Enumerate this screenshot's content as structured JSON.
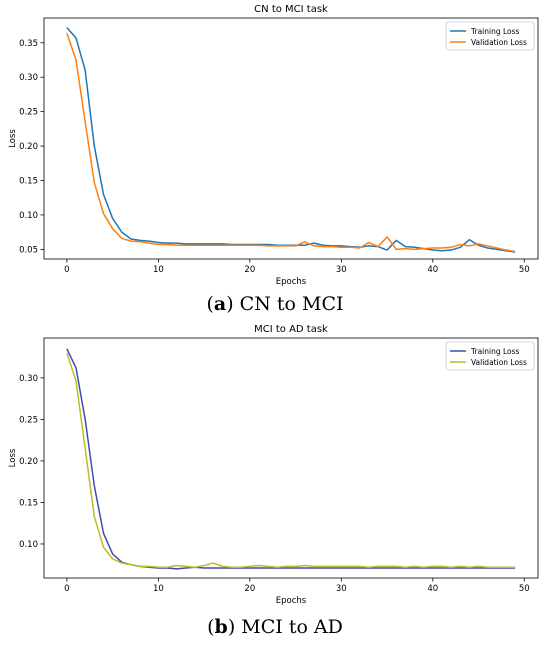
{
  "chart_data": [
    {
      "type": "line",
      "title": "CN to MCI task",
      "xlabel": "Epochs",
      "ylabel": "Loss",
      "xlim": [
        -2.5,
        51.5
      ],
      "ylim": [
        0.036,
        0.386
      ],
      "xticks": [
        0,
        10,
        20,
        30,
        40,
        50
      ],
      "yticks": [
        0.05,
        0.1,
        0.15,
        0.2,
        0.25,
        0.3,
        0.35
      ],
      "ytick_labels": [
        "0.05",
        "0.10",
        "0.15",
        "0.20",
        "0.25",
        "0.30",
        "0.35"
      ],
      "grid": false,
      "legend_position": "upper-right",
      "x": [
        0,
        1,
        2,
        3,
        4,
        5,
        6,
        7,
        8,
        9,
        10,
        11,
        12,
        13,
        14,
        15,
        16,
        17,
        18,
        19,
        20,
        21,
        22,
        23,
        24,
        25,
        26,
        27,
        28,
        29,
        30,
        31,
        32,
        33,
        34,
        35,
        36,
        37,
        38,
        39,
        40,
        41,
        42,
        43,
        44,
        45,
        46,
        47,
        48,
        49
      ],
      "series": [
        {
          "name": "Training Loss",
          "color": "#1f77b4",
          "values": [
            0.372,
            0.357,
            0.31,
            0.2,
            0.13,
            0.095,
            0.075,
            0.065,
            0.063,
            0.062,
            0.06,
            0.059,
            0.059,
            0.058,
            0.058,
            0.058,
            0.058,
            0.058,
            0.057,
            0.057,
            0.057,
            0.057,
            0.057,
            0.056,
            0.056,
            0.056,
            0.056,
            0.059,
            0.056,
            0.055,
            0.055,
            0.054,
            0.053,
            0.055,
            0.054,
            0.049,
            0.063,
            0.054,
            0.053,
            0.051,
            0.049,
            0.048,
            0.049,
            0.053,
            0.064,
            0.056,
            0.052,
            0.05,
            0.048,
            0.046
          ]
        },
        {
          "name": "Validation Loss",
          "color": "#ff7f0e",
          "values": [
            0.364,
            0.325,
            0.235,
            0.147,
            0.102,
            0.08,
            0.066,
            0.062,
            0.061,
            0.059,
            0.057,
            0.057,
            0.056,
            0.056,
            0.056,
            0.056,
            0.056,
            0.056,
            0.056,
            0.056,
            0.056,
            0.056,
            0.055,
            0.055,
            0.055,
            0.055,
            0.061,
            0.055,
            0.054,
            0.054,
            0.053,
            0.053,
            0.052,
            0.06,
            0.054,
            0.068,
            0.05,
            0.051,
            0.05,
            0.051,
            0.052,
            0.052,
            0.053,
            0.057,
            0.055,
            0.058,
            0.055,
            0.052,
            0.049,
            0.047
          ]
        }
      ],
      "caption_label": "a",
      "caption_text": "CN to MCI"
    },
    {
      "type": "line",
      "title": "MCI to AD task",
      "xlabel": "Epochs",
      "ylabel": "Loss",
      "xlim": [
        -2.5,
        51.5
      ],
      "ylim": [
        0.059,
        0.348
      ],
      "xticks": [
        0,
        10,
        20,
        30,
        40,
        50
      ],
      "yticks": [
        0.1,
        0.15,
        0.2,
        0.25,
        0.3
      ],
      "ytick_labels": [
        "0.10",
        "0.15",
        "0.20",
        "0.25",
        "0.30"
      ],
      "grid": false,
      "legend_position": "upper-right",
      "x": [
        0,
        1,
        2,
        3,
        4,
        5,
        6,
        7,
        8,
        9,
        10,
        11,
        12,
        13,
        14,
        15,
        16,
        17,
        18,
        19,
        20,
        21,
        22,
        23,
        24,
        25,
        26,
        27,
        28,
        29,
        30,
        31,
        32,
        33,
        34,
        35,
        36,
        37,
        38,
        39,
        40,
        41,
        42,
        43,
        44,
        45,
        46,
        47,
        48,
        49
      ],
      "series": [
        {
          "name": "Training Loss",
          "color": "#3c4fb0",
          "values": [
            0.335,
            0.312,
            0.25,
            0.17,
            0.113,
            0.088,
            0.078,
            0.075,
            0.073,
            0.072,
            0.071,
            0.071,
            0.07,
            0.071,
            0.072,
            0.071,
            0.071,
            0.071,
            0.071,
            0.071,
            0.071,
            0.071,
            0.071,
            0.071,
            0.071,
            0.071,
            0.071,
            0.071,
            0.071,
            0.071,
            0.071,
            0.071,
            0.071,
            0.071,
            0.071,
            0.071,
            0.071,
            0.071,
            0.071,
            0.071,
            0.071,
            0.071,
            0.071,
            0.071,
            0.071,
            0.071,
            0.071,
            0.071,
            0.071,
            0.071
          ]
        },
        {
          "name": "Validation Loss",
          "color": "#bcbd22",
          "values": [
            0.33,
            0.296,
            0.215,
            0.133,
            0.096,
            0.082,
            0.077,
            0.075,
            0.073,
            0.073,
            0.072,
            0.072,
            0.074,
            0.073,
            0.072,
            0.074,
            0.077,
            0.073,
            0.072,
            0.072,
            0.073,
            0.074,
            0.073,
            0.072,
            0.073,
            0.073,
            0.074,
            0.073,
            0.073,
            0.073,
            0.073,
            0.073,
            0.073,
            0.072,
            0.073,
            0.073,
            0.073,
            0.072,
            0.073,
            0.072,
            0.073,
            0.073,
            0.072,
            0.073,
            0.072,
            0.073,
            0.072,
            0.072,
            0.072,
            0.072
          ]
        }
      ],
      "caption_label": "b",
      "caption_text": "MCI to AD"
    }
  ]
}
